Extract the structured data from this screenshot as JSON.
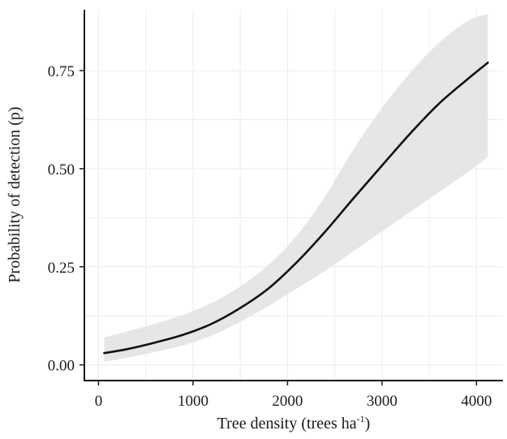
{
  "chart_data": {
    "type": "line",
    "title": "",
    "xlabel": "Tree density (trees ha",
    "xlabel_superscript": "-1",
    "xlabel_suffix": ")",
    "ylabel": "Probability of detection (p)",
    "xlim": [
      -150,
      4280
    ],
    "ylim": [
      -0.04,
      0.905
    ],
    "x_ticks": [
      0,
      1000,
      2000,
      3000,
      4000
    ],
    "x_tick_labels": [
      "0",
      "1000",
      "2000",
      "3000",
      "4000"
    ],
    "y_ticks": [
      0.0,
      0.25,
      0.5,
      0.75
    ],
    "y_tick_labels": [
      "0.00",
      "0.25",
      "0.50",
      "0.75"
    ],
    "grid": true,
    "series": [
      {
        "x": [
          60,
          300,
          600,
          900,
          1200,
          1500,
          1800,
          2100,
          2400,
          2700,
          3000,
          3300,
          3600,
          3900,
          4120
        ],
        "y": [
          0.03,
          0.04,
          0.057,
          0.077,
          0.105,
          0.145,
          0.195,
          0.262,
          0.34,
          0.425,
          0.508,
          0.59,
          0.665,
          0.727,
          0.77
        ],
        "lower": [
          0.008,
          0.018,
          0.033,
          0.05,
          0.075,
          0.11,
          0.15,
          0.195,
          0.24,
          0.29,
          0.34,
          0.39,
          0.44,
          0.49,
          0.53
        ],
        "upper": [
          0.07,
          0.085,
          0.105,
          0.128,
          0.158,
          0.2,
          0.255,
          0.33,
          0.43,
          0.55,
          0.655,
          0.745,
          0.82,
          0.875,
          0.895
        ],
        "color": "#111111",
        "band_color": "#e6e6e6"
      }
    ]
  }
}
